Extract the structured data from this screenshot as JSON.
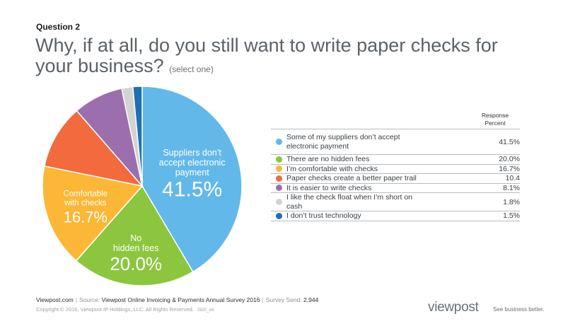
{
  "question_label": "Question 2",
  "title_main": "Why, if at all, do you still want to write paper checks for your business?",
  "title_sub": "(select one)",
  "response_header": [
    "Response",
    "Percent"
  ],
  "chart_data": {
    "type": "pie",
    "slices": [
      {
        "label": "Some of my suppliers don’t accept electronic payment",
        "value": 41.5,
        "display": "41.5%",
        "color": "#63b8ea",
        "pie_label": [
          "Suppliers don’t",
          "accept electronic",
          "payment"
        ],
        "pie_value": "41.5%"
      },
      {
        "label": "There are no hidden fees",
        "value": 20.0,
        "display": "20.0%",
        "color": "#8cc63f",
        "pie_label": [
          "No",
          "hidden fees"
        ],
        "pie_value": "20.0%"
      },
      {
        "label": "I’m comfortable with checks",
        "value": 16.7,
        "display": "16.7%",
        "color": "#fbb735",
        "pie_label": [
          "Comfortable",
          "with checks"
        ],
        "pie_value": "16.7%"
      },
      {
        "label": "Paper checks create a better paper trail",
        "value": 10.4,
        "display": "10.4",
        "color": "#f26a3d"
      },
      {
        "label": "It is easier to write checks",
        "value": 8.1,
        "display": "8.1%",
        "color": "#9b6fae"
      },
      {
        "label": "I like the check float when I’m short on cash",
        "value": 1.8,
        "display": "1.8%",
        "color": "#d3d3d3"
      },
      {
        "label": "I don’t trust technology",
        "value": 1.5,
        "display": "1.5%",
        "color": "#1f6fb5"
      }
    ]
  },
  "footer": {
    "site": "Viewpost.com",
    "source_label": "Source:",
    "source": "Viewpost Online Invoicing & Payments Annual Survey 2016",
    "send_label": "Survey Send:",
    "send_value": "2,944",
    "copyright": "Copyright © 2016, Viewpost IP Holdings, LLC. All Rights Reserved.",
    "code": "2620_d4"
  },
  "brand": {
    "name": "viewpost",
    "tagline": "See business better."
  }
}
